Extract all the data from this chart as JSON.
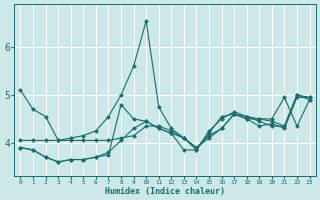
{
  "title": "",
  "xlabel": "Humidex (Indice chaleur)",
  "ylabel": "",
  "xlim": [
    -0.5,
    23.5
  ],
  "ylim": [
    3.3,
    6.9
  ],
  "xticks": [
    0,
    1,
    2,
    3,
    4,
    5,
    6,
    7,
    8,
    9,
    10,
    11,
    12,
    13,
    14,
    15,
    16,
    17,
    18,
    19,
    20,
    21,
    22,
    23
  ],
  "yticks": [
    4,
    5,
    6
  ],
  "bg_color": "#cce8e8",
  "grid_color": "#b0d0d0",
  "line_color": "#1a6b6b",
  "series": [
    {
      "x": [
        0,
        1,
        2,
        3,
        4,
        5,
        6,
        7,
        8,
        9,
        10,
        11,
        12,
        13,
        14,
        15,
        16,
        17,
        18,
        19,
        20,
        21,
        22,
        23
      ],
      "y": [
        5.1,
        4.7,
        4.55,
        4.05,
        4.1,
        4.15,
        4.25,
        4.55,
        5.0,
        5.6,
        6.55,
        4.75,
        4.3,
        4.1,
        3.9,
        4.15,
        4.3,
        4.6,
        4.55,
        4.45,
        4.35,
        4.35,
        5.0,
        4.95
      ]
    },
    {
      "x": [
        0,
        1,
        2,
        3,
        4,
        5,
        6,
        7,
        8,
        9,
        10,
        11,
        12,
        13,
        14,
        15,
        16,
        17,
        18,
        19,
        20,
        21,
        22,
        23
      ],
      "y": [
        4.05,
        4.05,
        4.05,
        4.05,
        4.05,
        4.05,
        4.05,
        4.05,
        4.1,
        4.15,
        4.35,
        4.35,
        4.25,
        4.1,
        3.85,
        4.2,
        4.55,
        4.6,
        4.5,
        4.5,
        4.45,
        4.35,
        5.0,
        4.9
      ]
    },
    {
      "x": [
        0,
        1,
        2,
        3,
        4,
        5,
        6,
        7,
        8,
        9,
        10,
        11,
        12,
        13,
        14,
        15,
        16,
        17,
        18,
        19,
        20,
        21,
        22,
        23
      ],
      "y": [
        3.9,
        3.85,
        3.7,
        3.6,
        3.65,
        3.65,
        3.7,
        3.75,
        4.8,
        4.5,
        4.45,
        4.3,
        4.2,
        3.85,
        3.85,
        4.25,
        4.5,
        4.65,
        4.55,
        4.5,
        4.5,
        4.95,
        4.35,
        4.9
      ]
    },
    {
      "x": [
        0,
        1,
        2,
        3,
        4,
        5,
        6,
        7,
        8,
        9,
        10,
        11,
        12,
        13,
        14,
        15,
        16,
        17,
        18,
        19,
        20,
        21,
        22,
        23
      ],
      "y": [
        3.9,
        3.85,
        3.7,
        3.6,
        3.65,
        3.65,
        3.7,
        3.8,
        4.05,
        4.3,
        4.45,
        4.3,
        4.2,
        4.1,
        3.9,
        4.1,
        4.3,
        4.6,
        4.5,
        4.35,
        4.4,
        4.3,
        4.95,
        4.95
      ]
    }
  ]
}
